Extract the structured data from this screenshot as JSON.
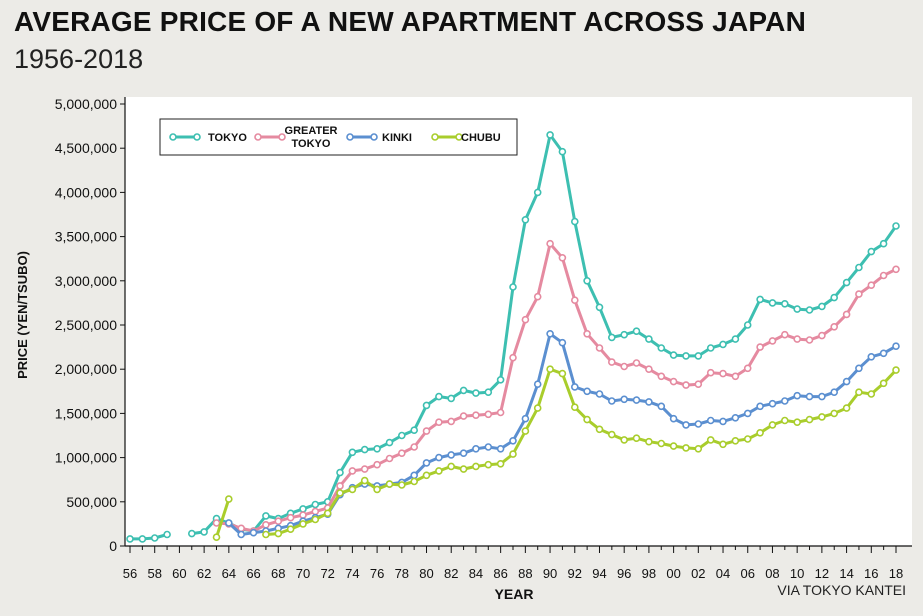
{
  "title": "AVERAGE PRICE OF A NEW APARTMENT ACROSS JAPAN",
  "subtitle": "1956-2018",
  "source": "VIA TOKYO KANTEI",
  "colors": {
    "tokyo": "#3dbfb1",
    "greater_tokyo": "#e58aa0",
    "kinki": "#5b8fd0",
    "chubu": "#a9cd2c",
    "background": "#ecebe7",
    "plot": "#ffffff"
  },
  "chart_data": {
    "type": "line",
    "xlabel": "YEAR",
    "ylabel": "PRICE (YEN/TSUBO)",
    "ylim": [
      0,
      5000000
    ],
    "yticks": [
      0,
      500000,
      1000000,
      1500000,
      2000000,
      2500000,
      3000000,
      3500000,
      4000000,
      4500000,
      5000000
    ],
    "ytick_labels": [
      "0",
      "500,000",
      "1,000,000",
      "1,500,000",
      "2,000,000",
      "2,500,000",
      "3,000,000",
      "3,500,000",
      "4,000,000",
      "4,500,000",
      "5,000,000"
    ],
    "xlim": [
      1956,
      2018
    ],
    "xtick_labels": [
      "56",
      "58",
      "60",
      "62",
      "64",
      "66",
      "68",
      "70",
      "72",
      "74",
      "76",
      "78",
      "80",
      "82",
      "84",
      "86",
      "88",
      "90",
      "92",
      "94",
      "96",
      "98",
      "00",
      "02",
      "04",
      "06",
      "08",
      "10",
      "12",
      "14",
      "16",
      "18"
    ],
    "grid": false,
    "legend_position": "top-left",
    "series": [
      {
        "name": "TOKYO",
        "key": "tokyo",
        "points": [
          [
            1956,
            80000
          ],
          [
            1957,
            80000
          ],
          [
            1958,
            90000
          ],
          [
            1959,
            130000
          ],
          [
            1961,
            140000
          ],
          [
            1962,
            160000
          ],
          [
            1963,
            310000
          ],
          [
            1964,
            260000
          ],
          [
            1965,
            190000
          ],
          [
            1966,
            170000
          ],
          [
            1967,
            340000
          ],
          [
            1968,
            310000
          ],
          [
            1969,
            370000
          ],
          [
            1970,
            420000
          ],
          [
            1971,
            470000
          ],
          [
            1972,
            500000
          ],
          [
            1973,
            830000
          ],
          [
            1974,
            1060000
          ],
          [
            1975,
            1090000
          ],
          [
            1976,
            1100000
          ],
          [
            1977,
            1170000
          ],
          [
            1978,
            1250000
          ],
          [
            1979,
            1310000
          ],
          [
            1980,
            1590000
          ],
          [
            1981,
            1690000
          ],
          [
            1982,
            1670000
          ],
          [
            1983,
            1760000
          ],
          [
            1984,
            1730000
          ],
          [
            1985,
            1740000
          ],
          [
            1986,
            1880000
          ],
          [
            1987,
            2930000
          ],
          [
            1988,
            3690000
          ],
          [
            1989,
            4000000
          ],
          [
            1990,
            4650000
          ],
          [
            1991,
            4460000
          ],
          [
            1992,
            3670000
          ],
          [
            1993,
            3000000
          ],
          [
            1994,
            2700000
          ],
          [
            1995,
            2360000
          ],
          [
            1996,
            2390000
          ],
          [
            1997,
            2430000
          ],
          [
            1998,
            2340000
          ],
          [
            1999,
            2240000
          ],
          [
            2000,
            2160000
          ],
          [
            2001,
            2150000
          ],
          [
            2002,
            2150000
          ],
          [
            2003,
            2240000
          ],
          [
            2004,
            2280000
          ],
          [
            2005,
            2340000
          ],
          [
            2006,
            2500000
          ],
          [
            2007,
            2790000
          ],
          [
            2008,
            2750000
          ],
          [
            2009,
            2740000
          ],
          [
            2010,
            2680000
          ],
          [
            2011,
            2670000
          ],
          [
            2012,
            2710000
          ],
          [
            2013,
            2810000
          ],
          [
            2014,
            2980000
          ],
          [
            2015,
            3150000
          ],
          [
            2016,
            3330000
          ],
          [
            2017,
            3420000
          ],
          [
            2018,
            3620000
          ]
        ]
      },
      {
        "name": "GREATER TOKYO",
        "key": "greater_tokyo",
        "points": [
          [
            1963,
            260000
          ],
          [
            1964,
            250000
          ],
          [
            1965,
            200000
          ],
          [
            1966,
            170000
          ],
          [
            1967,
            240000
          ],
          [
            1968,
            280000
          ],
          [
            1969,
            320000
          ],
          [
            1970,
            350000
          ],
          [
            1971,
            390000
          ],
          [
            1972,
            430000
          ],
          [
            1973,
            680000
          ],
          [
            1974,
            850000
          ],
          [
            1975,
            870000
          ],
          [
            1976,
            920000
          ],
          [
            1977,
            990000
          ],
          [
            1978,
            1050000
          ],
          [
            1979,
            1120000
          ],
          [
            1980,
            1300000
          ],
          [
            1981,
            1400000
          ],
          [
            1982,
            1410000
          ],
          [
            1983,
            1470000
          ],
          [
            1984,
            1480000
          ],
          [
            1985,
            1490000
          ],
          [
            1986,
            1510000
          ],
          [
            1987,
            2130000
          ],
          [
            1988,
            2560000
          ],
          [
            1989,
            2820000
          ],
          [
            1990,
            3420000
          ],
          [
            1991,
            3260000
          ],
          [
            1992,
            2780000
          ],
          [
            1993,
            2400000
          ],
          [
            1994,
            2240000
          ],
          [
            1995,
            2080000
          ],
          [
            1996,
            2030000
          ],
          [
            1997,
            2070000
          ],
          [
            1998,
            2000000
          ],
          [
            1999,
            1920000
          ],
          [
            2000,
            1860000
          ],
          [
            2001,
            1820000
          ],
          [
            2002,
            1830000
          ],
          [
            2003,
            1960000
          ],
          [
            2004,
            1950000
          ],
          [
            2005,
            1920000
          ],
          [
            2006,
            2010000
          ],
          [
            2007,
            2250000
          ],
          [
            2008,
            2320000
          ],
          [
            2009,
            2390000
          ],
          [
            2010,
            2340000
          ],
          [
            2011,
            2330000
          ],
          [
            2012,
            2380000
          ],
          [
            2013,
            2480000
          ],
          [
            2014,
            2620000
          ],
          [
            2015,
            2850000
          ],
          [
            2016,
            2950000
          ],
          [
            2017,
            3060000
          ],
          [
            2018,
            3130000
          ]
        ]
      },
      {
        "name": "KINKI",
        "key": "kinki",
        "points": [
          [
            1964,
            260000
          ],
          [
            1965,
            130000
          ],
          [
            1966,
            150000
          ],
          [
            1967,
            170000
          ],
          [
            1968,
            200000
          ],
          [
            1969,
            230000
          ],
          [
            1970,
            280000
          ],
          [
            1971,
            320000
          ],
          [
            1972,
            360000
          ],
          [
            1973,
            580000
          ],
          [
            1974,
            660000
          ],
          [
            1975,
            700000
          ],
          [
            1976,
            680000
          ],
          [
            1977,
            700000
          ],
          [
            1978,
            720000
          ],
          [
            1979,
            800000
          ],
          [
            1980,
            940000
          ],
          [
            1981,
            1000000
          ],
          [
            1982,
            1030000
          ],
          [
            1983,
            1050000
          ],
          [
            1984,
            1100000
          ],
          [
            1985,
            1120000
          ],
          [
            1986,
            1100000
          ],
          [
            1987,
            1190000
          ],
          [
            1988,
            1440000
          ],
          [
            1989,
            1830000
          ],
          [
            1990,
            2400000
          ],
          [
            1991,
            2300000
          ],
          [
            1992,
            1800000
          ],
          [
            1993,
            1750000
          ],
          [
            1994,
            1720000
          ],
          [
            1995,
            1640000
          ],
          [
            1996,
            1660000
          ],
          [
            1997,
            1650000
          ],
          [
            1998,
            1630000
          ],
          [
            1999,
            1580000
          ],
          [
            2000,
            1440000
          ],
          [
            2001,
            1370000
          ],
          [
            2002,
            1380000
          ],
          [
            2003,
            1420000
          ],
          [
            2004,
            1410000
          ],
          [
            2005,
            1450000
          ],
          [
            2006,
            1500000
          ],
          [
            2007,
            1580000
          ],
          [
            2008,
            1610000
          ],
          [
            2009,
            1640000
          ],
          [
            2010,
            1700000
          ],
          [
            2011,
            1690000
          ],
          [
            2012,
            1690000
          ],
          [
            2013,
            1740000
          ],
          [
            2014,
            1860000
          ],
          [
            2015,
            2010000
          ],
          [
            2016,
            2140000
          ],
          [
            2017,
            2180000
          ],
          [
            2018,
            2260000
          ]
        ]
      },
      {
        "name": "CHUBU",
        "key": "chubu",
        "points": [
          [
            1963,
            100000
          ],
          [
            1964,
            530000
          ],
          [
            1967,
            130000
          ],
          [
            1968,
            140000
          ],
          [
            1969,
            190000
          ],
          [
            1970,
            250000
          ],
          [
            1971,
            300000
          ],
          [
            1972,
            370000
          ],
          [
            1973,
            600000
          ],
          [
            1974,
            640000
          ],
          [
            1975,
            740000
          ],
          [
            1976,
            640000
          ],
          [
            1977,
            700000
          ],
          [
            1978,
            690000
          ],
          [
            1979,
            730000
          ],
          [
            1980,
            800000
          ],
          [
            1981,
            850000
          ],
          [
            1982,
            900000
          ],
          [
            1983,
            870000
          ],
          [
            1984,
            900000
          ],
          [
            1985,
            920000
          ],
          [
            1986,
            930000
          ],
          [
            1987,
            1040000
          ],
          [
            1988,
            1300000
          ],
          [
            1989,
            1560000
          ],
          [
            1990,
            2000000
          ],
          [
            1991,
            1950000
          ],
          [
            1992,
            1570000
          ],
          [
            1993,
            1430000
          ],
          [
            1994,
            1320000
          ],
          [
            1995,
            1260000
          ],
          [
            1996,
            1200000
          ],
          [
            1997,
            1220000
          ],
          [
            1998,
            1180000
          ],
          [
            1999,
            1160000
          ],
          [
            2000,
            1130000
          ],
          [
            2001,
            1110000
          ],
          [
            2002,
            1100000
          ],
          [
            2003,
            1200000
          ],
          [
            2004,
            1150000
          ],
          [
            2005,
            1190000
          ],
          [
            2006,
            1210000
          ],
          [
            2007,
            1280000
          ],
          [
            2008,
            1370000
          ],
          [
            2009,
            1420000
          ],
          [
            2010,
            1400000
          ],
          [
            2011,
            1430000
          ],
          [
            2012,
            1460000
          ],
          [
            2013,
            1500000
          ],
          [
            2014,
            1560000
          ],
          [
            2015,
            1740000
          ],
          [
            2016,
            1720000
          ],
          [
            2017,
            1840000
          ],
          [
            2018,
            1990000
          ]
        ]
      }
    ],
    "legend": [
      {
        "key": "tokyo",
        "label_lines": [
          "TOKYO"
        ]
      },
      {
        "key": "greater_tokyo",
        "label_lines": [
          "GREATER",
          "TOKYO"
        ]
      },
      {
        "key": "kinki",
        "label_lines": [
          "KINKI"
        ]
      },
      {
        "key": "chubu",
        "label_lines": [
          "CHUBU"
        ]
      }
    ]
  }
}
